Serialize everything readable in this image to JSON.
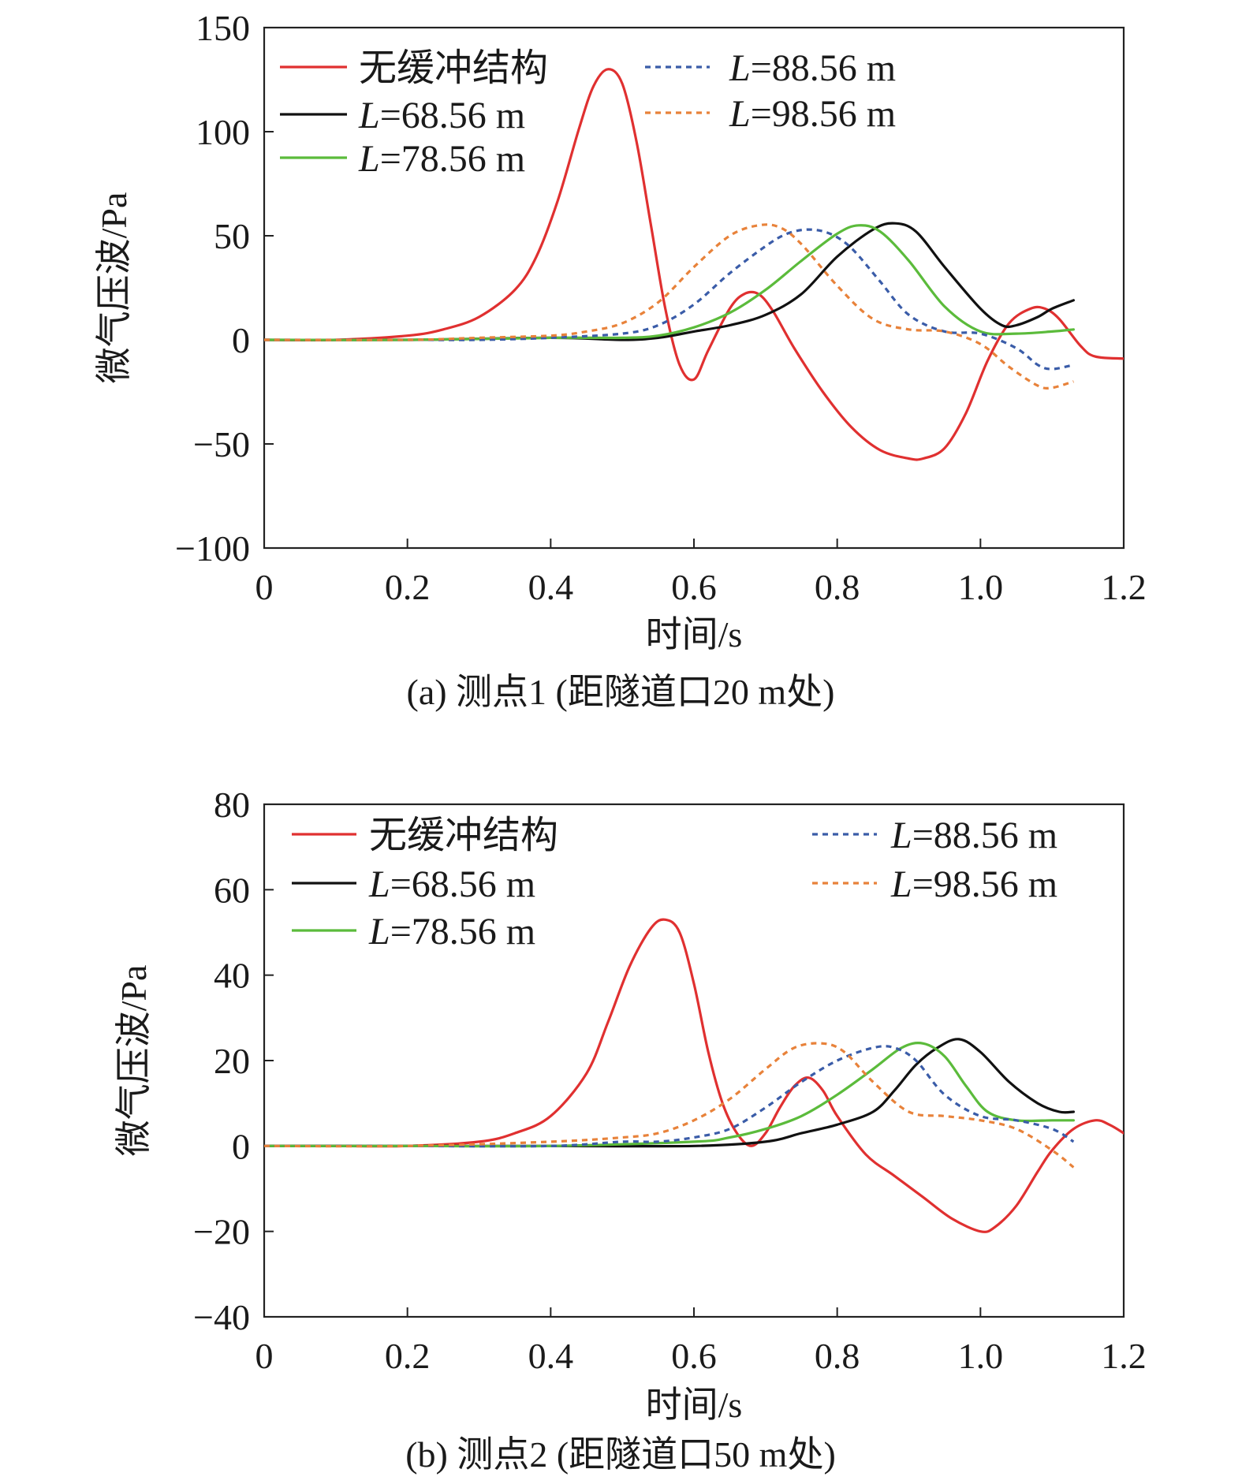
{
  "figure": {
    "panels": [
      {
        "caption": "(a) 测点1 (距隧道口20 m处)"
      },
      {
        "caption": "(b) 测点2 (距隧道口50 m处)"
      }
    ]
  },
  "chart_data": [
    {
      "type": "line",
      "caption": "(a) 测点1 (距隧道口20 m处)",
      "xlabel": "时间/s",
      "ylabel": "微气压波/Pa",
      "xlim": [
        0,
        1.2
      ],
      "ylim": [
        -100,
        150
      ],
      "xticks": [
        "0",
        "0.2",
        "0.4",
        "0.6",
        "0.8",
        "1.0",
        "1.2"
      ],
      "yticks": [
        "150",
        "100",
        "50",
        "0",
        "−50",
        "−100"
      ],
      "ytick_values": [
        150,
        100,
        50,
        0,
        -50,
        -100
      ],
      "xtick_values": [
        0,
        0.2,
        0.4,
        0.6,
        0.8,
        1.0,
        1.2
      ],
      "grid": false,
      "legend": "top, two columns",
      "series": [
        {
          "name": "无缓冲结构",
          "color": "#e03030",
          "dash": "solid",
          "x": [
            0,
            0.1,
            0.2,
            0.25,
            0.3,
            0.35,
            0.38,
            0.41,
            0.44,
            0.46,
            0.48,
            0.5,
            0.52,
            0.54,
            0.56,
            0.58,
            0.6,
            0.62,
            0.65,
            0.67,
            0.69,
            0.71,
            0.74,
            0.78,
            0.82,
            0.86,
            0.9,
            0.92,
            0.95,
            0.98,
            1.01,
            1.04,
            1.07,
            1.09,
            1.11,
            1.14,
            1.16,
            1.2
          ],
          "y": [
            0,
            0,
            2,
            5,
            11,
            24,
            40,
            67,
            102,
            122,
            130,
            123,
            95,
            55,
            15,
            -12,
            -19,
            -5,
            15,
            22,
            22,
            14,
            -4,
            -25,
            -42,
            -53,
            -57,
            -57,
            -52,
            -35,
            -10,
            8,
            15,
            15,
            10,
            -3,
            -8,
            -9
          ]
        },
        {
          "name": "L=68.56 m",
          "color": "#111111",
          "dash": "solid",
          "x": [
            0,
            0.2,
            0.4,
            0.5,
            0.55,
            0.6,
            0.65,
            0.7,
            0.75,
            0.8,
            0.85,
            0.88,
            0.91,
            0.95,
            1.0,
            1.03,
            1.05,
            1.08,
            1.1,
            1.13
          ],
          "y": [
            0,
            0,
            1,
            0,
            1,
            4,
            7,
            12,
            22,
            40,
            53,
            56,
            52,
            35,
            15,
            7,
            7,
            11,
            15,
            19
          ]
        },
        {
          "name": "L=78.56 m",
          "color": "#5bbb3b",
          "dash": "solid",
          "x": [
            0,
            0.2,
            0.4,
            0.5,
            0.55,
            0.6,
            0.65,
            0.7,
            0.75,
            0.8,
            0.83,
            0.86,
            0.9,
            0.95,
            1.0,
            1.05,
            1.1,
            1.13
          ],
          "y": [
            0,
            0,
            1,
            1,
            2,
            6,
            13,
            24,
            38,
            51,
            55,
            52,
            38,
            16,
            4,
            3,
            4,
            5
          ]
        },
        {
          "name": "L=88.56 m",
          "color": "#3a5ca8",
          "dash": "dotted",
          "x": [
            0,
            0.2,
            0.3,
            0.4,
            0.5,
            0.55,
            0.6,
            0.65,
            0.7,
            0.73,
            0.76,
            0.79,
            0.82,
            0.86,
            0.9,
            0.95,
            1.0,
            1.05,
            1.08,
            1.1,
            1.13
          ],
          "y": [
            0,
            0,
            0,
            1,
            3,
            7,
            17,
            32,
            45,
            51,
            53,
            51,
            44,
            28,
            12,
            4,
            3,
            -4,
            -12,
            -14,
            -12
          ]
        },
        {
          "name": "L=98.56 m",
          "color": "#e8823a",
          "dash": "dotted",
          "x": [
            0,
            0.2,
            0.3,
            0.4,
            0.45,
            0.5,
            0.55,
            0.6,
            0.65,
            0.69,
            0.72,
            0.75,
            0.8,
            0.85,
            0.9,
            0.95,
            1.0,
            1.04,
            1.08,
            1.1,
            1.13
          ],
          "y": [
            0,
            0,
            1,
            2,
            4,
            8,
            18,
            35,
            50,
            55,
            54,
            46,
            26,
            10,
            5,
            4,
            -2,
            -13,
            -22,
            -23,
            -20
          ]
        }
      ]
    },
    {
      "type": "line",
      "caption": "(b) 测点2 (距隧道口50 m处)",
      "xlabel": "时间/s",
      "ylabel": "微气压波/Pa",
      "xlim": [
        0,
        1.2
      ],
      "ylim": [
        -40,
        80
      ],
      "xticks": [
        "0",
        "0.2",
        "0.4",
        "0.6",
        "0.8",
        "1.0",
        "1.2"
      ],
      "yticks": [
        "80",
        "60",
        "40",
        "20",
        "0",
        "−20",
        "−40"
      ],
      "ytick_values": [
        80,
        60,
        40,
        20,
        0,
        -20,
        -40
      ],
      "xtick_values": [
        0,
        0.2,
        0.4,
        0.6,
        0.8,
        1.0,
        1.2
      ],
      "grid": false,
      "legend": "top, two columns",
      "series": [
        {
          "name": "无缓冲结构",
          "color": "#e03030",
          "dash": "solid",
          "x": [
            0,
            0.1,
            0.2,
            0.3,
            0.35,
            0.4,
            0.45,
            0.48,
            0.51,
            0.54,
            0.56,
            0.58,
            0.6,
            0.62,
            0.64,
            0.66,
            0.68,
            0.7,
            0.72,
            0.74,
            0.76,
            0.78,
            0.8,
            0.84,
            0.88,
            0.92,
            0.96,
            1.0,
            1.02,
            1.05,
            1.08,
            1.1,
            1.13,
            1.16,
            1.18,
            1.2
          ],
          "y": [
            0,
            0,
            0,
            1,
            3,
            7,
            17,
            29,
            42,
            51,
            53,
            50,
            38,
            22,
            10,
            3,
            0,
            3,
            9,
            14,
            16,
            13,
            7,
            -2,
            -7,
            -12,
            -17,
            -20,
            -19,
            -14,
            -6,
            -1,
            4,
            6,
            5,
            3
          ]
        },
        {
          "name": "L=68.56 m",
          "color": "#111111",
          "dash": "solid",
          "x": [
            0,
            0.2,
            0.4,
            0.6,
            0.7,
            0.75,
            0.8,
            0.85,
            0.88,
            0.91,
            0.94,
            0.97,
            1.0,
            1.04,
            1.08,
            1.11,
            1.13
          ],
          "y": [
            0,
            0,
            0,
            0,
            1,
            3,
            5,
            8,
            13,
            19,
            23,
            25,
            22,
            15,
            10,
            8,
            8
          ]
        },
        {
          "name": "L=78.56 m",
          "color": "#5bbb3b",
          "dash": "solid",
          "x": [
            0,
            0.2,
            0.4,
            0.6,
            0.65,
            0.7,
            0.75,
            0.8,
            0.85,
            0.89,
            0.92,
            0.95,
            0.98,
            1.01,
            1.05,
            1.1,
            1.13
          ],
          "y": [
            0,
            0,
            0,
            1,
            2,
            4,
            7,
            12,
            18,
            23,
            24,
            21,
            14,
            8,
            6,
            6,
            6
          ]
        },
        {
          "name": "L=88.56 m",
          "color": "#3a5ca8",
          "dash": "dotted",
          "x": [
            0,
            0.2,
            0.4,
            0.5,
            0.55,
            0.6,
            0.65,
            0.7,
            0.75,
            0.8,
            0.85,
            0.88,
            0.91,
            0.95,
            1.0,
            1.05,
            1.1,
            1.13
          ],
          "y": [
            0,
            0,
            0,
            1,
            1,
            2,
            4,
            9,
            15,
            20,
            23,
            23,
            20,
            12,
            7,
            6,
            4,
            1
          ]
        },
        {
          "name": "L=98.56 m",
          "color": "#e8823a",
          "dash": "dotted",
          "x": [
            0,
            0.2,
            0.4,
            0.5,
            0.55,
            0.6,
            0.65,
            0.7,
            0.74,
            0.78,
            0.81,
            0.85,
            0.9,
            0.95,
            1.0,
            1.05,
            1.1,
            1.13
          ],
          "y": [
            0,
            0,
            1,
            2,
            3,
            6,
            11,
            18,
            23,
            24,
            22,
            15,
            8,
            7,
            6,
            4,
            -1,
            -5
          ]
        }
      ]
    }
  ]
}
